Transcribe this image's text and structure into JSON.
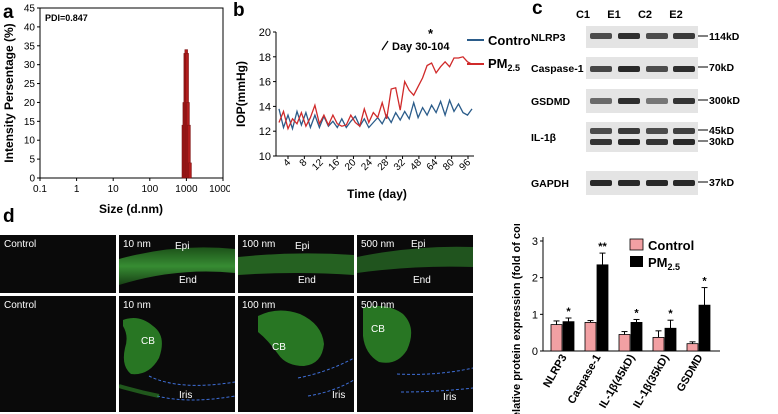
{
  "panels": {
    "a": "a",
    "b": "b",
    "c": "c",
    "d": "d"
  },
  "panel_a": {
    "chart_data": {
      "type": "bar",
      "annotation": "PDI=0.847",
      "xlabel": "Size (d.nm)",
      "ylabel": "Intensity Persentage (%)",
      "x_scale": "log",
      "xlim": [
        0.1,
        10000
      ],
      "ylim": [
        0,
        45
      ],
      "x_ticks": [
        "0.1",
        "1",
        "10",
        "100",
        "1000",
        "10000"
      ],
      "y_ticks": [
        "0",
        "5",
        "10",
        "15",
        "20",
        "25",
        "30",
        "35",
        "40",
        "45"
      ],
      "bar_color": "#b01c1c",
      "x": [
        825,
        875,
        930,
        990,
        1050,
        1110,
        1180,
        1260
      ],
      "values": [
        14,
        20,
        33,
        34,
        33,
        20,
        14,
        4
      ]
    }
  },
  "panel_b": {
    "chart_data": {
      "type": "line",
      "xlabel": "Time (day)",
      "ylabel": "IOP(mmHg)",
      "ylim": [
        10,
        20
      ],
      "y_ticks": [
        "10",
        "12",
        "14",
        "16",
        "18",
        "20"
      ],
      "x_ticks": [
        "4",
        "8",
        "12",
        "16",
        "20",
        "24",
        "28",
        "32",
        "48",
        "64",
        "80",
        "96"
      ],
      "annotation_star": "*",
      "annotation": "Day 30-104",
      "legend": [
        "Control",
        "PM2.5"
      ],
      "series": [
        {
          "name": "Control",
          "color": "#2b5c8a",
          "values": [
            13.8,
            12.3,
            13.3,
            12.2,
            13.6,
            12.5,
            13.5,
            12.3,
            13.3,
            12.3,
            13.2,
            12.4,
            12.8,
            12.3,
            13.0,
            12.3,
            12.8,
            13.2,
            12.4,
            13.0,
            12.3,
            12.7,
            13.1,
            12.6,
            13.3,
            12.7,
            13.5,
            12.9,
            13.6,
            13.0,
            14.3,
            13.1,
            13.9,
            13.3,
            14.1,
            13.5,
            14.4,
            13.3,
            14.5,
            13.6,
            14.2,
            13.5,
            13.3,
            13.8
          ]
        },
        {
          "name": "PM2.5",
          "color": "#d02a2a",
          "values": [
            12.7,
            13.6,
            12.2,
            13.0,
            12.6,
            13.5,
            12.4,
            13.1,
            14.1,
            12.6,
            13.3,
            12.5,
            13.3,
            12.6,
            12.4,
            12.5,
            13.3,
            12.7,
            12.4,
            13.8,
            12.7,
            13.5,
            13.1,
            14.3,
            13.0,
            15.4,
            15.5,
            13.7,
            16.0,
            15.3,
            14.9,
            15.6,
            16.3,
            17.3,
            17.5,
            16.7,
            17.2,
            17.6,
            17.2,
            17.9,
            17.9,
            18.0,
            17.6,
            17.4
          ]
        }
      ]
    }
  },
  "panel_c": {
    "lanes": [
      "C1",
      "E1",
      "C2",
      "E2"
    ],
    "proteins": [
      "NLRP3",
      "Caspase-1",
      "GSDMD",
      "IL-1β",
      "GAPDH"
    ],
    "sizes": [
      "114kD",
      "70kD",
      "300kD",
      "45kD",
      "30kD",
      "37kD"
    ]
  },
  "panel_d": {
    "row1": [
      "Control",
      "10 nm",
      "100 nm",
      "500 nm"
    ],
    "row2": [
      "Control",
      "10 nm",
      "100 nm",
      "500 nm"
    ],
    "epi": "Epi",
    "end": "End",
    "cb": "CB",
    "iris": "Iris"
  },
  "panel_e": {
    "chart_data": {
      "type": "bar",
      "ylabel": "Relative protein expression (fold of controls)",
      "ylim": [
        0,
        3
      ],
      "y_ticks": [
        "0",
        "1",
        "2",
        "3"
      ],
      "categories": [
        "NLRP3",
        "Caspase-1",
        "IL-1β(45kD)",
        "IL-1β(35kD)",
        "GSDMD"
      ],
      "series": [
        {
          "name": "Control",
          "color": "#f2a0a3",
          "values": [
            0.72,
            0.78,
            0.45,
            0.37,
            0.2
          ],
          "errors": [
            0.1,
            0.05,
            0.08,
            0.18,
            0.05
          ]
        },
        {
          "name": "PM2.5",
          "color": "#000000",
          "values": [
            0.8,
            2.35,
            0.78,
            0.62,
            1.25
          ],
          "errors": [
            0.1,
            0.32,
            0.08,
            0.22,
            0.48
          ]
        }
      ],
      "significance": [
        "*",
        "**",
        "*",
        "*",
        "*"
      ]
    }
  }
}
